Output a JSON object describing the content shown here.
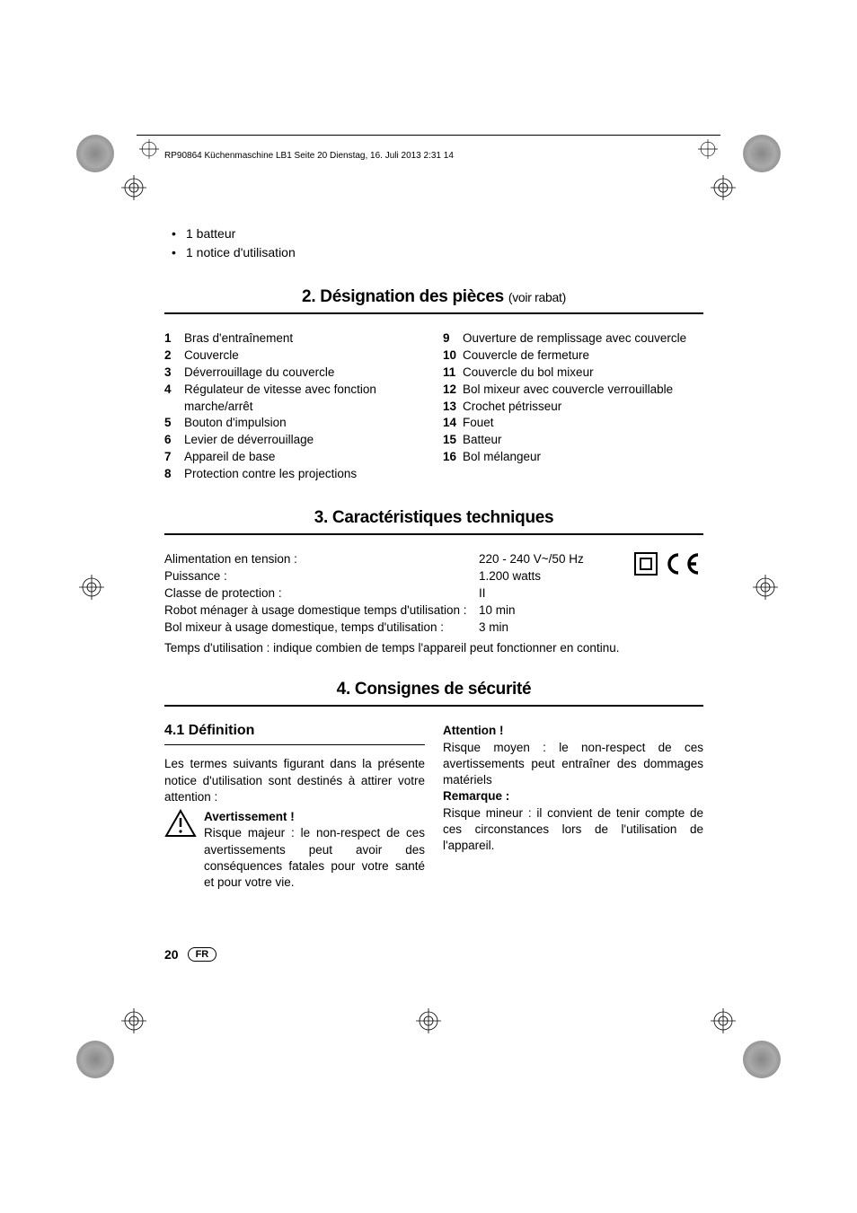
{
  "header": "RP90864 Küchenmaschine LB1  Seite 20  Dienstag, 16. Juli 2013  2:31 14",
  "intro_bullets": [
    "1 batteur",
    "1 notice d'utilisation"
  ],
  "section2": {
    "title_main": "2. Désignation des pièces ",
    "title_sub": "(voir rabat)",
    "left": [
      {
        "n": "1",
        "t": "Bras d'entraînement"
      },
      {
        "n": "2",
        "t": "Couvercle"
      },
      {
        "n": "3",
        "t": "Déverrouillage du couvercle"
      },
      {
        "n": "4",
        "t": "Régulateur de vitesse avec fonction marche/arrêt"
      },
      {
        "n": "5",
        "t": "Bouton d'impulsion"
      },
      {
        "n": "6",
        "t": "Levier de déverrouillage"
      },
      {
        "n": "7",
        "t": "Appareil de base"
      },
      {
        "n": "8",
        "t": "Protection contre les projections"
      }
    ],
    "right": [
      {
        "n": "9",
        "t": "Ouverture de remplissage avec couvercle"
      },
      {
        "n": "10",
        "t": "Couvercle de fermeture"
      },
      {
        "n": "11",
        "t": "Couvercle du bol mixeur"
      },
      {
        "n": "12",
        "t": "Bol mixeur avec couvercle verrouillable"
      },
      {
        "n": "13",
        "t": "Crochet pétrisseur"
      },
      {
        "n": "14",
        "t": "Fouet"
      },
      {
        "n": "15",
        "t": "Batteur"
      },
      {
        "n": "16",
        "t": "Bol mélangeur"
      }
    ]
  },
  "section3": {
    "title": "3. Caractéristiques techniques",
    "rows": [
      {
        "label": "Alimentation en tension :",
        "value": "220 - 240 V~/50 Hz"
      },
      {
        "label": "Puissance :",
        "value": "1.200 watts"
      },
      {
        "label": "Classe de protection :",
        "value": "II"
      },
      {
        "label": "Robot ménager à usage domestique temps d'utilisation :",
        "value": "10 min"
      },
      {
        "label": "Bol mixeur à usage domestique, temps d'utilisation :",
        "value": "3 min"
      }
    ],
    "note": "Temps d'utilisation : indique combien de temps l'appareil peut fonctionner en continu."
  },
  "section4": {
    "title": "4. Consignes de sécurité",
    "sub41_title": "4.1 Définition",
    "sub41_intro": "Les termes suivants figurant dans la présente notice d'utilisation sont destinés à attirer votre attention :",
    "avert_label": "Avertissement !",
    "avert_text": "Risque majeur : le non-respect de ces avertissements peut avoir des conséquences fatales pour votre santé et pour votre vie.",
    "attention_label": "Attention !",
    "attention_text": "Risque moyen : le non-respect de ces avertissements peut entraîner des dommages matériels",
    "remarque_label": "Remarque :",
    "remarque_text": "Risque mineur : il convient de tenir compte de ces circonstances lors de l'utilisation de l'appareil."
  },
  "footer": {
    "page": "20",
    "lang": "FR"
  },
  "colors": {
    "text": "#000000",
    "bg": "#ffffff"
  }
}
